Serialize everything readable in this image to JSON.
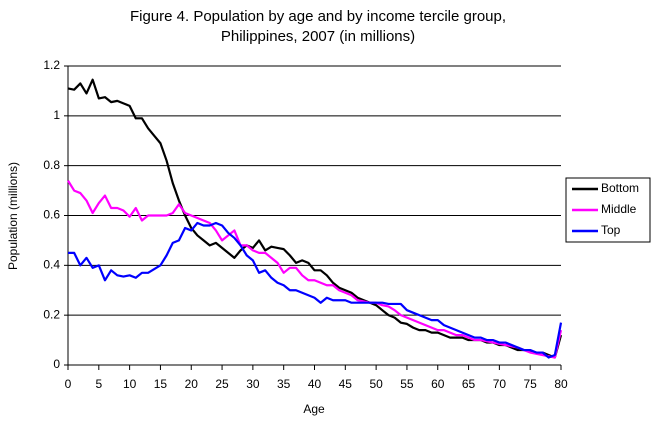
{
  "chart_data": {
    "type": "line",
    "title": [
      "Figure 4. Population by age and by income tercile group,",
      "Philippines, 2007 (in millions)"
    ],
    "xlabel": "Age",
    "ylabel": "Population (millions)",
    "x": [
      0,
      1,
      2,
      3,
      4,
      5,
      6,
      7,
      8,
      9,
      10,
      11,
      12,
      13,
      14,
      15,
      16,
      17,
      18,
      19,
      20,
      21,
      22,
      23,
      24,
      25,
      26,
      27,
      28,
      29,
      30,
      31,
      32,
      33,
      34,
      35,
      36,
      37,
      38,
      39,
      40,
      41,
      42,
      43,
      44,
      45,
      46,
      47,
      48,
      49,
      50,
      51,
      52,
      53,
      54,
      55,
      56,
      57,
      58,
      59,
      60,
      61,
      62,
      63,
      64,
      65,
      66,
      67,
      68,
      69,
      70,
      71,
      72,
      73,
      74,
      75,
      76,
      77,
      78,
      79,
      80
    ],
    "series": [
      {
        "name": "Bottom",
        "color": "#000000",
        "values": [
          1.11,
          1.105,
          1.13,
          1.09,
          1.145,
          1.07,
          1.075,
          1.055,
          1.06,
          1.05,
          1.04,
          0.99,
          0.99,
          0.95,
          0.92,
          0.89,
          0.82,
          0.73,
          0.66,
          0.6,
          0.55,
          0.52,
          0.5,
          0.48,
          0.49,
          0.47,
          0.45,
          0.43,
          0.46,
          0.48,
          0.47,
          0.5,
          0.46,
          0.475,
          0.47,
          0.465,
          0.44,
          0.41,
          0.42,
          0.41,
          0.38,
          0.38,
          0.36,
          0.33,
          0.31,
          0.3,
          0.29,
          0.27,
          0.26,
          0.25,
          0.24,
          0.22,
          0.2,
          0.19,
          0.17,
          0.165,
          0.15,
          0.14,
          0.14,
          0.13,
          0.13,
          0.12,
          0.11,
          0.11,
          0.11,
          0.1,
          0.1,
          0.1,
          0.09,
          0.09,
          0.08,
          0.08,
          0.07,
          0.06,
          0.06,
          0.055,
          0.05,
          0.05,
          0.04,
          0.03,
          0.12
        ]
      },
      {
        "name": "Middle",
        "color": "#ff00ff",
        "values": [
          0.74,
          0.7,
          0.69,
          0.66,
          0.61,
          0.65,
          0.68,
          0.63,
          0.63,
          0.62,
          0.595,
          0.63,
          0.58,
          0.6,
          0.6,
          0.6,
          0.6,
          0.61,
          0.645,
          0.61,
          0.6,
          0.59,
          0.58,
          0.57,
          0.54,
          0.5,
          0.52,
          0.54,
          0.48,
          0.48,
          0.46,
          0.45,
          0.45,
          0.43,
          0.41,
          0.37,
          0.39,
          0.39,
          0.36,
          0.34,
          0.34,
          0.33,
          0.32,
          0.32,
          0.3,
          0.29,
          0.28,
          0.26,
          0.255,
          0.25,
          0.25,
          0.24,
          0.235,
          0.22,
          0.2,
          0.19,
          0.18,
          0.17,
          0.16,
          0.15,
          0.14,
          0.14,
          0.13,
          0.12,
          0.12,
          0.11,
          0.1,
          0.1,
          0.095,
          0.09,
          0.085,
          0.08,
          0.075,
          0.07,
          0.06,
          0.05,
          0.045,
          0.04,
          0.035,
          0.03,
          0.14
        ]
      },
      {
        "name": "Top",
        "color": "#0000ff",
        "values": [
          0.45,
          0.45,
          0.4,
          0.43,
          0.39,
          0.4,
          0.34,
          0.38,
          0.36,
          0.355,
          0.36,
          0.35,
          0.37,
          0.37,
          0.385,
          0.4,
          0.44,
          0.49,
          0.5,
          0.55,
          0.54,
          0.57,
          0.56,
          0.56,
          0.57,
          0.56,
          0.53,
          0.51,
          0.48,
          0.44,
          0.42,
          0.37,
          0.38,
          0.35,
          0.33,
          0.32,
          0.3,
          0.3,
          0.29,
          0.28,
          0.27,
          0.25,
          0.27,
          0.26,
          0.26,
          0.26,
          0.25,
          0.25,
          0.25,
          0.25,
          0.25,
          0.25,
          0.245,
          0.245,
          0.245,
          0.22,
          0.21,
          0.2,
          0.19,
          0.18,
          0.18,
          0.16,
          0.15,
          0.14,
          0.13,
          0.12,
          0.11,
          0.11,
          0.1,
          0.1,
          0.09,
          0.09,
          0.08,
          0.07,
          0.06,
          0.06,
          0.05,
          0.05,
          0.03,
          0.04,
          0.17
        ]
      }
    ],
    "xlim": [
      0,
      80
    ],
    "xticks": [
      0,
      5,
      10,
      15,
      20,
      25,
      30,
      35,
      40,
      45,
      50,
      55,
      60,
      65,
      70,
      75,
      80
    ],
    "ylim": [
      0,
      1.2
    ],
    "yticks": [
      0,
      0.2,
      0.4,
      0.6,
      0.8,
      1,
      1.2
    ],
    "grid": true,
    "legend": "right"
  }
}
